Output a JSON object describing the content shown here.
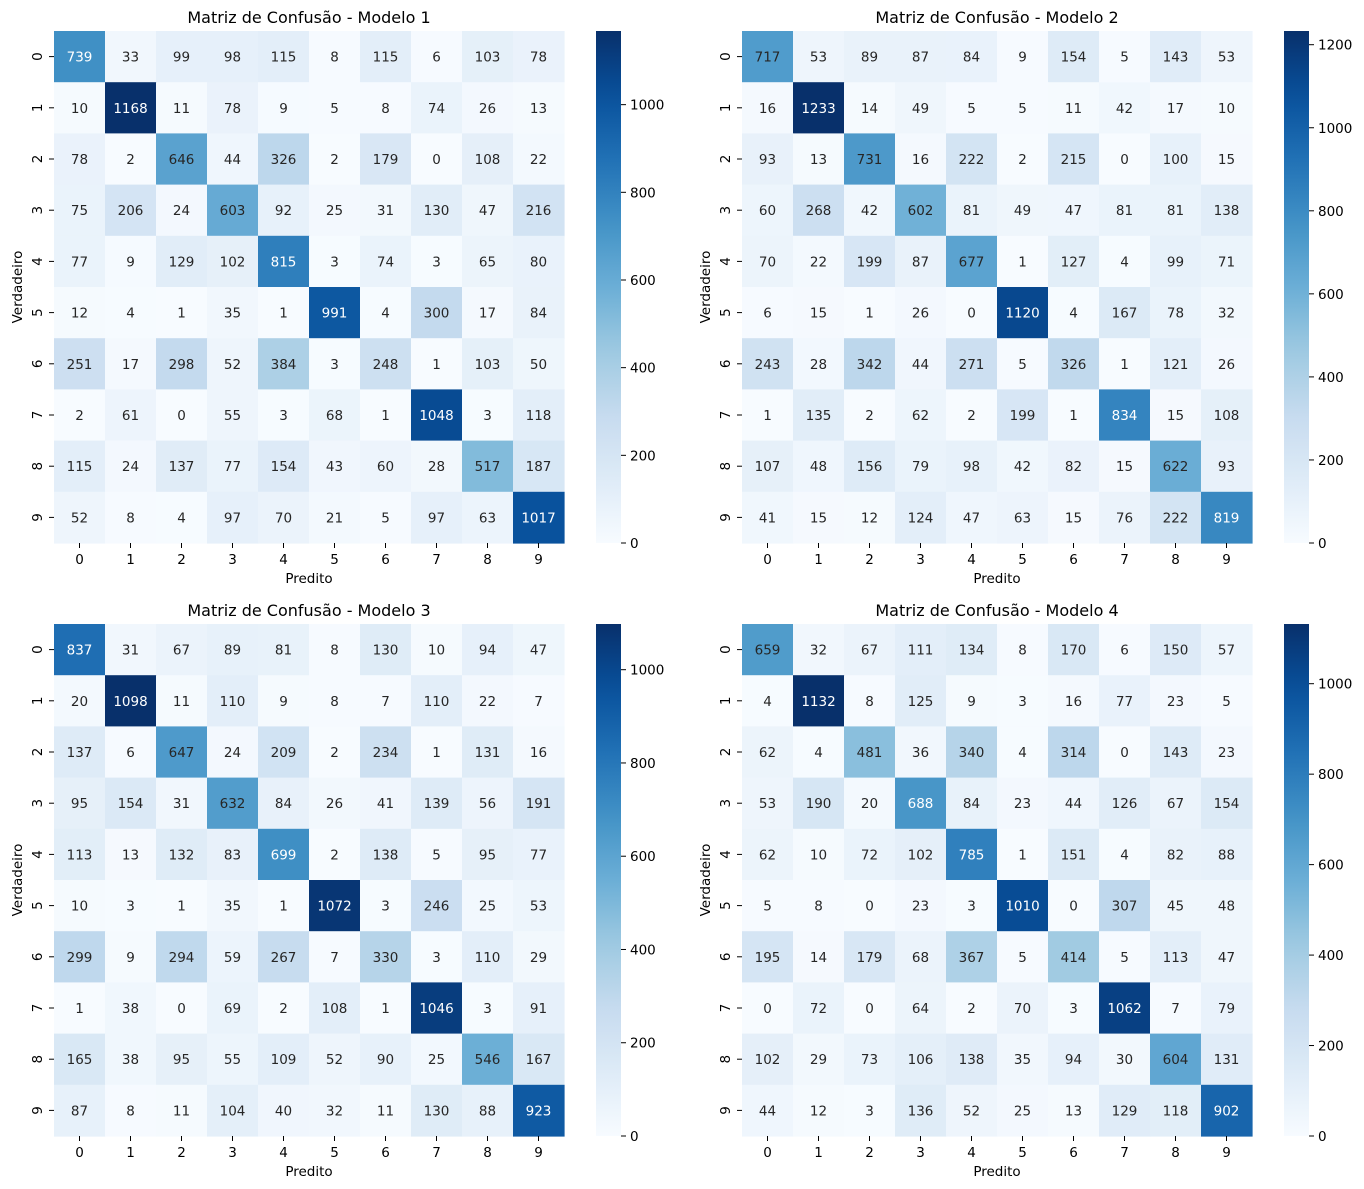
{
  "chart_data": [
    {
      "type": "heatmap",
      "title": "Matriz de Confusão - Modelo 1",
      "xlabel": "Predito",
      "ylabel": "Verdadeiro",
      "x_categories": [
        "0",
        "1",
        "2",
        "3",
        "4",
        "5",
        "6",
        "7",
        "8",
        "9"
      ],
      "y_categories": [
        "0",
        "1",
        "2",
        "3",
        "4",
        "5",
        "6",
        "7",
        "8",
        "9"
      ],
      "matrix": [
        [
          739,
          33,
          99,
          98,
          115,
          8,
          115,
          6,
          103,
          78
        ],
        [
          10,
          1168,
          11,
          78,
          9,
          5,
          8,
          74,
          26,
          13
        ],
        [
          78,
          2,
          646,
          44,
          326,
          2,
          179,
          0,
          108,
          22
        ],
        [
          75,
          206,
          24,
          603,
          92,
          25,
          31,
          130,
          47,
          216
        ],
        [
          77,
          9,
          129,
          102,
          815,
          3,
          74,
          3,
          65,
          80
        ],
        [
          12,
          4,
          1,
          35,
          1,
          991,
          4,
          300,
          17,
          84
        ],
        [
          251,
          17,
          298,
          52,
          384,
          3,
          248,
          1,
          103,
          50
        ],
        [
          2,
          61,
          0,
          55,
          3,
          68,
          1,
          1048,
          3,
          118
        ],
        [
          115,
          24,
          137,
          77,
          154,
          43,
          60,
          28,
          517,
          187
        ],
        [
          52,
          8,
          4,
          97,
          70,
          21,
          5,
          97,
          63,
          1017
        ]
      ],
      "colorbar": {
        "range": [
          0,
          1168
        ],
        "ticks": [
          0,
          200,
          400,
          600,
          800,
          1000
        ]
      },
      "colormap": "Blues"
    },
    {
      "type": "heatmap",
      "title": "Matriz de Confusão - Modelo 2",
      "xlabel": "Predito",
      "ylabel": "Verdadeiro",
      "x_categories": [
        "0",
        "1",
        "2",
        "3",
        "4",
        "5",
        "6",
        "7",
        "8",
        "9"
      ],
      "y_categories": [
        "0",
        "1",
        "2",
        "3",
        "4",
        "5",
        "6",
        "7",
        "8",
        "9"
      ],
      "matrix": [
        [
          717,
          53,
          89,
          87,
          84,
          9,
          154,
          5,
          143,
          53
        ],
        [
          16,
          1233,
          14,
          49,
          5,
          5,
          11,
          42,
          17,
          10
        ],
        [
          93,
          13,
          731,
          16,
          222,
          2,
          215,
          0,
          100,
          15
        ],
        [
          60,
          268,
          42,
          602,
          81,
          49,
          47,
          81,
          81,
          138
        ],
        [
          70,
          22,
          199,
          87,
          677,
          1,
          127,
          4,
          99,
          71
        ],
        [
          6,
          15,
          1,
          26,
          0,
          1120,
          4,
          167,
          78,
          32
        ],
        [
          243,
          28,
          342,
          44,
          271,
          5,
          326,
          1,
          121,
          26
        ],
        [
          1,
          135,
          2,
          62,
          2,
          199,
          1,
          834,
          15,
          108
        ],
        [
          107,
          48,
          156,
          79,
          98,
          42,
          82,
          15,
          622,
          93
        ],
        [
          41,
          15,
          12,
          124,
          47,
          63,
          15,
          76,
          222,
          819
        ]
      ],
      "colorbar": {
        "range": [
          0,
          1233
        ],
        "ticks": [
          0,
          200,
          400,
          600,
          800,
          1000,
          1200
        ]
      },
      "colormap": "Blues"
    },
    {
      "type": "heatmap",
      "title": "Matriz de Confusão - Modelo 3",
      "xlabel": "Predito",
      "ylabel": "Verdadeiro",
      "x_categories": [
        "0",
        "1",
        "2",
        "3",
        "4",
        "5",
        "6",
        "7",
        "8",
        "9"
      ],
      "y_categories": [
        "0",
        "1",
        "2",
        "3",
        "4",
        "5",
        "6",
        "7",
        "8",
        "9"
      ],
      "matrix": [
        [
          837,
          31,
          67,
          89,
          81,
          8,
          130,
          10,
          94,
          47
        ],
        [
          20,
          1098,
          11,
          110,
          9,
          8,
          7,
          110,
          22,
          7
        ],
        [
          137,
          6,
          647,
          24,
          209,
          2,
          234,
          1,
          131,
          16
        ],
        [
          95,
          154,
          31,
          632,
          84,
          26,
          41,
          139,
          56,
          191
        ],
        [
          113,
          13,
          132,
          83,
          699,
          2,
          138,
          5,
          95,
          77
        ],
        [
          10,
          3,
          1,
          35,
          1,
          1072,
          3,
          246,
          25,
          53
        ],
        [
          299,
          9,
          294,
          59,
          267,
          7,
          330,
          3,
          110,
          29
        ],
        [
          1,
          38,
          0,
          69,
          2,
          108,
          1,
          1046,
          3,
          91
        ],
        [
          165,
          38,
          95,
          55,
          109,
          52,
          90,
          25,
          546,
          167
        ],
        [
          87,
          8,
          11,
          104,
          40,
          32,
          11,
          130,
          88,
          923
        ]
      ],
      "colorbar": {
        "range": [
          0,
          1098
        ],
        "ticks": [
          0,
          200,
          400,
          600,
          800,
          1000
        ]
      },
      "colormap": "Blues"
    },
    {
      "type": "heatmap",
      "title": "Matriz de Confusão - Modelo 4",
      "xlabel": "Predito",
      "ylabel": "Verdadeiro",
      "x_categories": [
        "0",
        "1",
        "2",
        "3",
        "4",
        "5",
        "6",
        "7",
        "8",
        "9"
      ],
      "y_categories": [
        "0",
        "1",
        "2",
        "3",
        "4",
        "5",
        "6",
        "7",
        "8",
        "9"
      ],
      "matrix": [
        [
          659,
          32,
          67,
          111,
          134,
          8,
          170,
          6,
          150,
          57
        ],
        [
          4,
          1132,
          8,
          125,
          9,
          3,
          16,
          77,
          23,
          5
        ],
        [
          62,
          4,
          481,
          36,
          340,
          4,
          314,
          0,
          143,
          23
        ],
        [
          53,
          190,
          20,
          688,
          84,
          23,
          44,
          126,
          67,
          154
        ],
        [
          62,
          10,
          72,
          102,
          785,
          1,
          151,
          4,
          82,
          88
        ],
        [
          5,
          8,
          0,
          23,
          3,
          1010,
          0,
          307,
          45,
          48
        ],
        [
          195,
          14,
          179,
          68,
          367,
          5,
          414,
          5,
          113,
          47
        ],
        [
          0,
          72,
          0,
          64,
          2,
          70,
          3,
          1062,
          7,
          79
        ],
        [
          102,
          29,
          73,
          106,
          138,
          35,
          94,
          30,
          604,
          131
        ],
        [
          44,
          12,
          3,
          136,
          52,
          25,
          13,
          129,
          118,
          902
        ]
      ],
      "colorbar": {
        "range": [
          0,
          1132
        ],
        "ticks": [
          0,
          200,
          400,
          600,
          800,
          1000
        ]
      },
      "colormap": "Blues"
    }
  ]
}
